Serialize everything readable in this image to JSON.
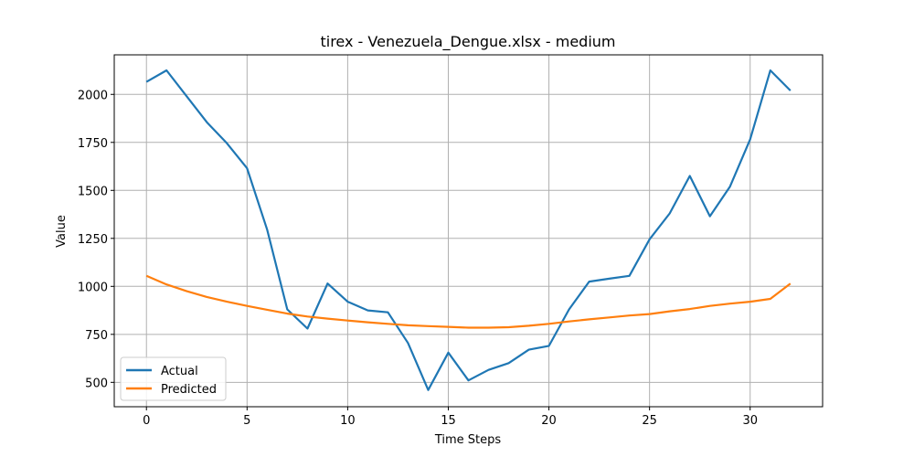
{
  "chart_data": {
    "type": "line",
    "title": "tirex - Venezuela_Dengue.xlsx - medium",
    "xlabel": "Time Steps",
    "ylabel": "Value",
    "xlim": [
      -1.6,
      33.6
    ],
    "ylim": [
      373,
      2206
    ],
    "xticks": [
      0,
      5,
      10,
      15,
      20,
      25,
      30
    ],
    "yticks": [
      500,
      750,
      1000,
      1250,
      1500,
      1750,
      2000
    ],
    "grid": true,
    "legend_position": "lower-left",
    "x": [
      0,
      1,
      2,
      3,
      4,
      5,
      6,
      7,
      8,
      9,
      10,
      11,
      12,
      13,
      14,
      15,
      16,
      17,
      18,
      19,
      20,
      21,
      22,
      23,
      24,
      25,
      26,
      27,
      28,
      29,
      30,
      31,
      32
    ],
    "series": [
      {
        "name": "Actual",
        "color": "#1f77b4",
        "values": [
          2065,
          2125,
          1990,
          1855,
          1745,
          1615,
          1295,
          880,
          780,
          1015,
          920,
          875,
          865,
          705,
          460,
          655,
          510,
          565,
          600,
          670,
          690,
          880,
          1025,
          1040,
          1055,
          1245,
          1380,
          1575,
          1365,
          1520,
          1765,
          2125,
          2020
        ]
      },
      {
        "name": "Predicted",
        "color": "#ff7f0e",
        "values": [
          1055,
          1010,
          975,
          945,
          920,
          898,
          878,
          858,
          843,
          832,
          822,
          813,
          805,
          797,
          793,
          789,
          785,
          785,
          787,
          795,
          805,
          817,
          828,
          838,
          848,
          856,
          870,
          882,
          898,
          910,
          920,
          935,
          1015
        ]
      }
    ]
  }
}
